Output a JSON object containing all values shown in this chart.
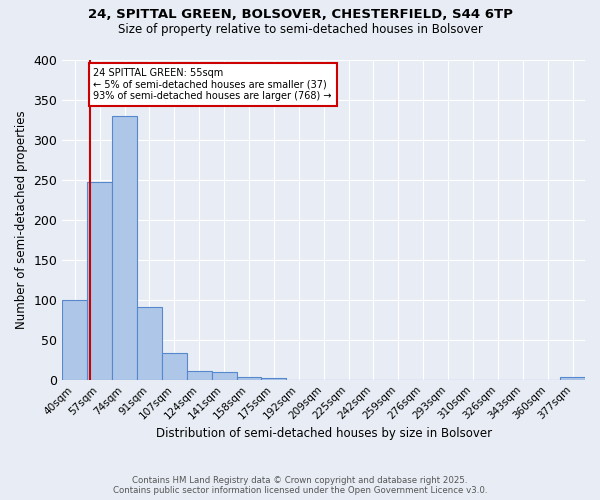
{
  "title_line1": "24, SPITTAL GREEN, BOLSOVER, CHESTERFIELD, S44 6TP",
  "title_line2": "Size of property relative to semi-detached houses in Bolsover",
  "xlabel": "Distribution of semi-detached houses by size in Bolsover",
  "ylabel": "Number of semi-detached properties",
  "bins": [
    "40sqm",
    "57sqm",
    "74sqm",
    "91sqm",
    "107sqm",
    "124sqm",
    "141sqm",
    "158sqm",
    "175sqm",
    "192sqm",
    "209sqm",
    "225sqm",
    "242sqm",
    "259sqm",
    "276sqm",
    "293sqm",
    "310sqm",
    "326sqm",
    "343sqm",
    "360sqm",
    "377sqm"
  ],
  "values": [
    100,
    247,
    330,
    91,
    33,
    11,
    10,
    4,
    2,
    0,
    0,
    0,
    0,
    0,
    0,
    0,
    0,
    0,
    0,
    0,
    3
  ],
  "subject_label": "24 SPITTAL GREEN: 55sqm",
  "pct_smaller": 5,
  "count_smaller": 37,
  "pct_larger": 93,
  "count_larger": 768,
  "bar_color": "#aec6e8",
  "bar_edge_color": "#5588cc",
  "vline_color": "#cc0000",
  "vline_x_bin": 1,
  "annotation_box_color": "#cc0000",
  "background_color": "#e8edf5",
  "grid_color": "#ffffff",
  "ylim": [
    0,
    400
  ],
  "yticks": [
    0,
    50,
    100,
    150,
    200,
    250,
    300,
    350,
    400
  ],
  "footer_line1": "Contains HM Land Registry data © Crown copyright and database right 2025.",
  "footer_line2": "Contains public sector information licensed under the Open Government Licence v3.0."
}
